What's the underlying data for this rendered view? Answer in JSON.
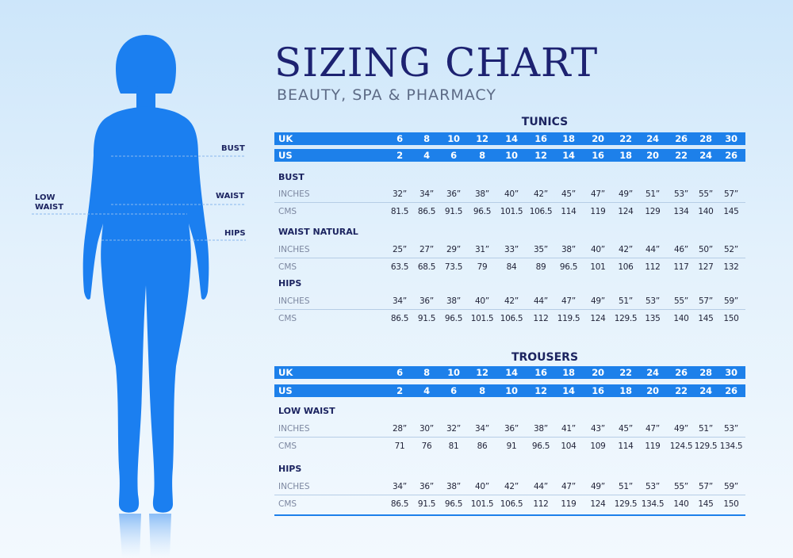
{
  "title": "SIZING CHART",
  "subtitle": "BEAUTY, SPA & PHARMACY",
  "figure": {
    "silhouette_color": "#1b7ff0",
    "measure_labels": {
      "bust": "BUST",
      "waist": "WAIST",
      "hips": "HIPS",
      "low_waist_1": "LOW",
      "low_waist_2": "WAIST"
    }
  },
  "colors": {
    "accent": "#1d80ea",
    "title": "#1d2271",
    "text": "#23253a",
    "muted": "#7c87a0"
  },
  "tunics": {
    "title": "TUNICS",
    "uk": {
      "label": "UK",
      "values": [
        "6",
        "8",
        "10",
        "12",
        "14",
        "16",
        "18",
        "20",
        "22",
        "24",
        "26",
        "28",
        "30"
      ]
    },
    "us": {
      "label": "US",
      "values": [
        "2",
        "4",
        "6",
        "8",
        "10",
        "12",
        "14",
        "16",
        "18",
        "20",
        "22",
        "24",
        "26"
      ]
    },
    "sections": [
      {
        "name": "BUST",
        "rows": [
          {
            "label": "INCHES",
            "values": [
              "32”",
              "34”",
              "36”",
              "38”",
              "40”",
              "42”",
              "45”",
              "47”",
              "49”",
              "51”",
              "53”",
              "55”",
              "57”"
            ]
          },
          {
            "label": "CMS",
            "values": [
              "81.5",
              "86.5",
              "91.5",
              "96.5",
              "101.5",
              "106.5",
              "114",
              "119",
              "124",
              "129",
              "134",
              "140",
              "145"
            ]
          }
        ]
      },
      {
        "name": "WAIST NATURAL",
        "rows": [
          {
            "label": "INCHES",
            "values": [
              "25”",
              "27”",
              "29”",
              "31”",
              "33”",
              "35”",
              "38”",
              "40”",
              "42”",
              "44”",
              "46”",
              "50”",
              "52”"
            ]
          },
          {
            "label": "CMS",
            "values": [
              "63.5",
              "68.5",
              "73.5",
              "79",
              "84",
              "89",
              "96.5",
              "101",
              "106",
              "112",
              "117",
              "127",
              "132"
            ]
          }
        ]
      },
      {
        "name": "HIPS",
        "rows": [
          {
            "label": "INCHES",
            "values": [
              "34”",
              "36”",
              "38”",
              "40”",
              "42”",
              "44”",
              "47”",
              "49”",
              "51”",
              "53”",
              "55”",
              "57”",
              "59”"
            ]
          },
          {
            "label": "CMS",
            "values": [
              "86.5",
              "91.5",
              "96.5",
              "101.5",
              "106.5",
              "112",
              "119.5",
              "124",
              "129.5",
              "135",
              "140",
              "145",
              "150"
            ]
          }
        ]
      }
    ]
  },
  "trousers": {
    "title": "TROUSERS",
    "uk": {
      "label": "UK",
      "values": [
        "6",
        "8",
        "10",
        "12",
        "14",
        "16",
        "18",
        "20",
        "22",
        "24",
        "26",
        "28",
        "30"
      ]
    },
    "us": {
      "label": "US",
      "values": [
        "2",
        "4",
        "6",
        "8",
        "10",
        "12",
        "14",
        "16",
        "18",
        "20",
        "22",
        "24",
        "26"
      ]
    },
    "sections": [
      {
        "name": "LOW WAIST",
        "rows": [
          {
            "label": "INCHES",
            "values": [
              "28”",
              "30”",
              "32”",
              "34”",
              "36”",
              "38”",
              "41”",
              "43”",
              "45”",
              "47”",
              "49”",
              "51”",
              "53”"
            ]
          },
          {
            "label": "CMS",
            "values": [
              "71",
              "76",
              "81",
              "86",
              "91",
              "96.5",
              "104",
              "109",
              "114",
              "119",
              "124.5",
              "129.5",
              "134.5"
            ]
          }
        ]
      },
      {
        "name": "HIPS",
        "rows": [
          {
            "label": "INCHES",
            "values": [
              "34”",
              "36”",
              "38”",
              "40”",
              "42”",
              "44”",
              "47”",
              "49”",
              "51”",
              "53”",
              "55”",
              "57”",
              "59”"
            ]
          },
          {
            "label": "CMS",
            "values": [
              "86.5",
              "91.5",
              "96.5",
              "101.5",
              "106.5",
              "112",
              "119",
              "124",
              "129.5",
              "134.5",
              "140",
              "145",
              "150"
            ]
          }
        ]
      }
    ]
  }
}
